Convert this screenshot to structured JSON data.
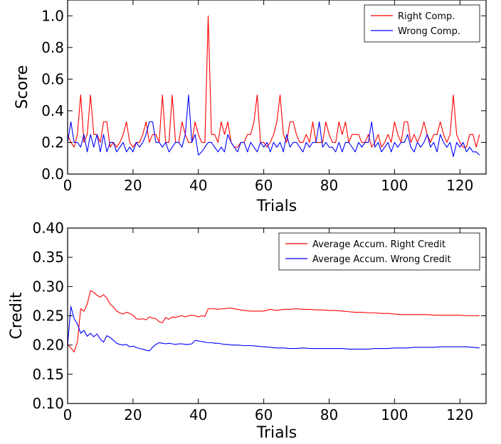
{
  "chart_data": [
    {
      "type": "line",
      "title": "",
      "xlabel": "Trials",
      "ylabel": "Score",
      "xlim": [
        0,
        128
      ],
      "ylim": [
        0.0,
        1.1
      ],
      "xticks": [
        0,
        20,
        40,
        60,
        80,
        100,
        120
      ],
      "yticks": [
        0.0,
        0.2,
        0.4,
        0.6,
        0.8,
        1.0
      ],
      "xtick_labels": [
        "0",
        "20",
        "40",
        "60",
        "80",
        "100",
        "120"
      ],
      "ytick_labels": [
        "0.0",
        "0.2",
        "0.4",
        "0.6",
        "0.8",
        "1.0"
      ],
      "grid": false,
      "legend": "top-right",
      "series": [
        {
          "name": "Right Comp.",
          "color": "#ff0000",
          "values": [
            0.25,
            0.2,
            0.17,
            0.25,
            0.5,
            0.2,
            0.25,
            0.5,
            0.25,
            0.25,
            0.2,
            0.33,
            0.33,
            0.17,
            0.2,
            0.17,
            0.2,
            0.25,
            0.33,
            0.2,
            0.17,
            0.2,
            0.2,
            0.25,
            0.33,
            0.2,
            0.25,
            0.25,
            0.2,
            0.5,
            0.2,
            0.2,
            0.5,
            0.2,
            0.2,
            0.33,
            0.25,
            0.2,
            0.2,
            0.33,
            0.25,
            0.2,
            0.2,
            1.0,
            0.25,
            0.25,
            0.2,
            0.33,
            0.25,
            0.33,
            0.2,
            0.17,
            0.17,
            0.2,
            0.2,
            0.25,
            0.25,
            0.33,
            0.5,
            0.2,
            0.2,
            0.17,
            0.2,
            0.25,
            0.33,
            0.5,
            0.25,
            0.2,
            0.33,
            0.33,
            0.25,
            0.2,
            0.2,
            0.25,
            0.2,
            0.33,
            0.2,
            0.2,
            0.2,
            0.33,
            0.25,
            0.2,
            0.2,
            0.33,
            0.25,
            0.33,
            0.2,
            0.25,
            0.25,
            0.25,
            0.2,
            0.2,
            0.25,
            0.17,
            0.2,
            0.25,
            0.17,
            0.2,
            0.25,
            0.2,
            0.33,
            0.25,
            0.2,
            0.33,
            0.33,
            0.2,
            0.25,
            0.2,
            0.25,
            0.33,
            0.25,
            0.2,
            0.25,
            0.25,
            0.33,
            0.25,
            0.2,
            0.25,
            0.5,
            0.25,
            0.2,
            0.17,
            0.17,
            0.25,
            0.25,
            0.17,
            0.25
          ]
        },
        {
          "name": "Wrong Comp.",
          "color": "#0000ff",
          "values": [
            0.2,
            0.33,
            0.2,
            0.2,
            0.17,
            0.25,
            0.14,
            0.25,
            0.17,
            0.25,
            0.14,
            0.25,
            0.14,
            0.2,
            0.2,
            0.14,
            0.17,
            0.2,
            0.14,
            0.17,
            0.14,
            0.2,
            0.17,
            0.2,
            0.25,
            0.33,
            0.33,
            0.2,
            0.2,
            0.17,
            0.2,
            0.14,
            0.17,
            0.2,
            0.2,
            0.17,
            0.25,
            0.5,
            0.2,
            0.25,
            0.12,
            0.14,
            0.17,
            0.2,
            0.2,
            0.17,
            0.14,
            0.17,
            0.14,
            0.25,
            0.2,
            0.17,
            0.14,
            0.2,
            0.2,
            0.14,
            0.2,
            0.17,
            0.14,
            0.2,
            0.17,
            0.2,
            0.14,
            0.2,
            0.17,
            0.2,
            0.14,
            0.25,
            0.17,
            0.2,
            0.2,
            0.17,
            0.14,
            0.2,
            0.17,
            0.2,
            0.2,
            0.33,
            0.17,
            0.2,
            0.17,
            0.17,
            0.14,
            0.2,
            0.14,
            0.2,
            0.2,
            0.17,
            0.14,
            0.2,
            0.17,
            0.2,
            0.2,
            0.33,
            0.17,
            0.2,
            0.14,
            0.17,
            0.2,
            0.14,
            0.2,
            0.17,
            0.2,
            0.2,
            0.25,
            0.17,
            0.14,
            0.2,
            0.17,
            0.2,
            0.25,
            0.17,
            0.2,
            0.14,
            0.25,
            0.2,
            0.17,
            0.2,
            0.11,
            0.2,
            0.17,
            0.2,
            0.14,
            0.17,
            0.14,
            0.14,
            0.12
          ]
        }
      ]
    },
    {
      "type": "line",
      "title": "",
      "xlabel": "Trials",
      "ylabel": "Credit",
      "xlim": [
        0,
        128
      ],
      "ylim": [
        0.1,
        0.4
      ],
      "xticks": [
        0,
        20,
        40,
        60,
        80,
        100,
        120
      ],
      "yticks": [
        0.1,
        0.15,
        0.2,
        0.25,
        0.3,
        0.35,
        0.4
      ],
      "xtick_labels": [
        "0",
        "20",
        "40",
        "60",
        "80",
        "100",
        "120"
      ],
      "ytick_labels": [
        "0.10",
        "0.15",
        "0.20",
        "0.25",
        "0.30",
        "0.35",
        "0.40"
      ],
      "grid": false,
      "legend": "top-right",
      "series": [
        {
          "name": "Average Accum. Right Credit",
          "color": "#ff0000",
          "x": [
            0,
            1,
            2,
            3,
            4,
            5,
            6,
            7,
            8,
            9,
            10,
            11,
            12,
            13,
            14,
            15,
            16,
            17,
            18,
            19,
            20,
            21,
            22,
            23,
            24,
            25,
            26,
            27,
            28,
            29,
            30,
            31,
            32,
            33,
            34,
            35,
            36,
            37,
            38,
            39,
            40,
            41,
            42,
            43,
            44,
            45,
            46,
            47,
            48,
            49,
            50,
            52,
            54,
            56,
            58,
            60,
            62,
            64,
            66,
            68,
            70,
            72,
            74,
            76,
            78,
            80,
            82,
            84,
            86,
            88,
            90,
            92,
            94,
            96,
            98,
            100,
            102,
            104,
            106,
            108,
            110,
            112,
            114,
            116,
            118,
            120,
            122,
            124,
            126
          ],
          "values": [
            0.2,
            0.195,
            0.188,
            0.205,
            0.262,
            0.258,
            0.27,
            0.293,
            0.29,
            0.285,
            0.282,
            0.286,
            0.28,
            0.27,
            0.265,
            0.258,
            0.255,
            0.253,
            0.256,
            0.254,
            0.251,
            0.245,
            0.244,
            0.245,
            0.243,
            0.248,
            0.246,
            0.245,
            0.24,
            0.238,
            0.247,
            0.244,
            0.248,
            0.247,
            0.249,
            0.25,
            0.248,
            0.25,
            0.251,
            0.25,
            0.248,
            0.25,
            0.249,
            0.262,
            0.262,
            0.262,
            0.261,
            0.262,
            0.262,
            0.263,
            0.263,
            0.261,
            0.259,
            0.258,
            0.258,
            0.258,
            0.261,
            0.259,
            0.261,
            0.261,
            0.262,
            0.261,
            0.261,
            0.26,
            0.26,
            0.259,
            0.259,
            0.258,
            0.257,
            0.256,
            0.256,
            0.255,
            0.255,
            0.254,
            0.254,
            0.253,
            0.252,
            0.252,
            0.252,
            0.252,
            0.252,
            0.251,
            0.251,
            0.251,
            0.251,
            0.251,
            0.25,
            0.25,
            0.25
          ]
        },
        {
          "name": "Average Accum. Wrong Credit",
          "color": "#0000ff",
          "x": [
            0,
            1,
            2,
            3,
            4,
            5,
            6,
            7,
            8,
            9,
            10,
            11,
            12,
            13,
            14,
            15,
            16,
            17,
            18,
            19,
            20,
            21,
            22,
            23,
            24,
            25,
            26,
            27,
            28,
            29,
            30,
            31,
            32,
            33,
            34,
            35,
            36,
            37,
            38,
            39,
            40,
            41,
            42,
            43,
            44,
            45,
            46,
            47,
            48,
            49,
            50,
            52,
            54,
            56,
            58,
            60,
            62,
            64,
            66,
            68,
            70,
            72,
            74,
            76,
            78,
            80,
            82,
            84,
            86,
            88,
            90,
            92,
            94,
            96,
            98,
            100,
            102,
            104,
            106,
            108,
            110,
            112,
            114,
            116,
            118,
            120,
            122,
            124,
            126
          ],
          "values": [
            0.2,
            0.266,
            0.245,
            0.236,
            0.22,
            0.225,
            0.215,
            0.22,
            0.214,
            0.219,
            0.21,
            0.205,
            0.216,
            0.213,
            0.208,
            0.203,
            0.201,
            0.2,
            0.201,
            0.197,
            0.198,
            0.196,
            0.194,
            0.193,
            0.191,
            0.19,
            0.196,
            0.201,
            0.204,
            0.203,
            0.202,
            0.203,
            0.202,
            0.201,
            0.202,
            0.202,
            0.201,
            0.201,
            0.202,
            0.208,
            0.207,
            0.206,
            0.205,
            0.204,
            0.204,
            0.203,
            0.203,
            0.202,
            0.201,
            0.201,
            0.2,
            0.2,
            0.199,
            0.199,
            0.198,
            0.197,
            0.196,
            0.195,
            0.195,
            0.194,
            0.194,
            0.195,
            0.194,
            0.194,
            0.194,
            0.194,
            0.194,
            0.194,
            0.193,
            0.193,
            0.193,
            0.193,
            0.194,
            0.194,
            0.194,
            0.195,
            0.195,
            0.195,
            0.196,
            0.196,
            0.196,
            0.196,
            0.197,
            0.197,
            0.197,
            0.197,
            0.197,
            0.196,
            0.195
          ]
        }
      ]
    }
  ]
}
